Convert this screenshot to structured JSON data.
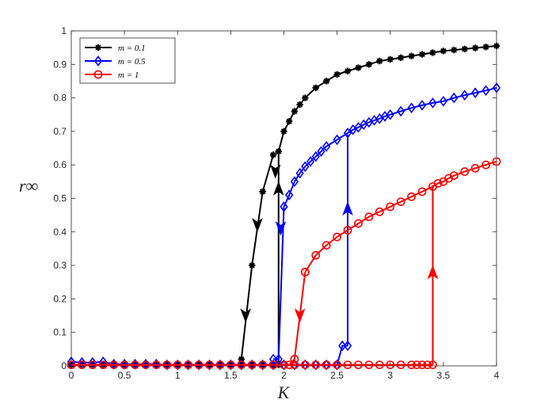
{
  "chart_data": {
    "type": "line",
    "xlabel": "K",
    "ylabel": "r∞",
    "xlim": [
      0,
      4
    ],
    "ylim": [
      0,
      1
    ],
    "xticks": [
      "0",
      "0.5",
      "1",
      "1.5",
      "2",
      "2.5",
      "3",
      "3.5",
      "4"
    ],
    "yticks": [
      "0",
      "0.1",
      "0.2",
      "0.3",
      "0.4",
      "0.5",
      "0.6",
      "0.7",
      "0.8",
      "0.9",
      "1"
    ],
    "legend_position": "top-left",
    "grid": false,
    "series": [
      {
        "name": "m = 0.1",
        "color": "#000000",
        "marker": "star",
        "forward": {
          "x": [
            0,
            0.1,
            0.2,
            0.3,
            0.4,
            0.5,
            0.6,
            0.7,
            0.8,
            0.9,
            1.0,
            1.1,
            1.2,
            1.3,
            1.4,
            1.5,
            1.6,
            1.7,
            1.8,
            1.9,
            1.95
          ],
          "y": [
            0.003,
            0.003,
            0.003,
            0.003,
            0.003,
            0.003,
            0.003,
            0.003,
            0.003,
            0.003,
            0.003,
            0.003,
            0.003,
            0.003,
            0.003,
            0.003,
            0.003,
            0.003,
            0.003,
            0.003,
            0.003
          ]
        },
        "jump_up": {
          "x": [
            1.95,
            1.95
          ],
          "y": [
            0.003,
            0.64
          ]
        },
        "upper": {
          "x": [
            1.95,
            2.0,
            2.05,
            2.1,
            2.15,
            2.2,
            2.3,
            2.4,
            2.5,
            2.6,
            2.7,
            2.8,
            2.9,
            3.0,
            3.1,
            3.2,
            3.3,
            3.4,
            3.5,
            3.6,
            3.7,
            3.8,
            3.9,
            4.0
          ],
          "y": [
            0.64,
            0.7,
            0.73,
            0.76,
            0.78,
            0.8,
            0.83,
            0.85,
            0.87,
            0.88,
            0.89,
            0.9,
            0.91,
            0.915,
            0.92,
            0.925,
            0.93,
            0.935,
            0.94,
            0.943,
            0.946,
            0.949,
            0.952,
            0.955
          ]
        },
        "backward": {
          "x": [
            1.9,
            1.8,
            1.7,
            1.6
          ],
          "y": [
            0.63,
            0.52,
            0.3,
            0.02
          ]
        },
        "arrows": [
          {
            "x": 1.92,
            "y": 0.58,
            "dir": "down"
          },
          {
            "x": 1.95,
            "y": 0.53,
            "dir": "up"
          },
          {
            "x": 1.75,
            "y": 0.42,
            "dir": "down"
          },
          {
            "x": 1.64,
            "y": 0.15,
            "dir": "down"
          }
        ]
      },
      {
        "name": "m = 0.5",
        "color": "#0000ff",
        "marker": "diamond",
        "forward": {
          "x": [
            0,
            0.1,
            0.2,
            0.3,
            0.4,
            0.5,
            0.6,
            0.7,
            0.8,
            0.9,
            1.0,
            1.1,
            1.2,
            1.3,
            1.4,
            1.5,
            1.6,
            1.7,
            1.8,
            1.9,
            2.0,
            2.1,
            2.2,
            2.3,
            2.4,
            2.5,
            2.55,
            2.6
          ],
          "y": [
            0.012,
            0.01,
            0.01,
            0.012,
            0.005,
            0.005,
            0.005,
            0.005,
            0.005,
            0.003,
            0.003,
            0.003,
            0.003,
            0.003,
            0.003,
            0.003,
            0.003,
            0.003,
            0.003,
            0.003,
            0.003,
            0.003,
            0.003,
            0.003,
            0.003,
            0.003,
            0.06,
            0.06
          ]
        },
        "jump_up": {
          "x": [
            2.6,
            2.6
          ],
          "y": [
            0.06,
            0.69
          ]
        },
        "upper": {
          "x": [
            2.0,
            2.05,
            2.1,
            2.15,
            2.2,
            2.25,
            2.3,
            2.35,
            2.4,
            2.5,
            2.6,
            2.65,
            2.7,
            2.75,
            2.8,
            2.85,
            2.9,
            2.95,
            3.0,
            3.1,
            3.2,
            3.3,
            3.4,
            3.5,
            3.6,
            3.7,
            3.8,
            3.9,
            4.0
          ],
          "y": [
            0.475,
            0.51,
            0.55,
            0.575,
            0.595,
            0.61,
            0.625,
            0.64,
            0.655,
            0.675,
            0.695,
            0.705,
            0.712,
            0.72,
            0.727,
            0.733,
            0.738,
            0.745,
            0.75,
            0.76,
            0.77,
            0.778,
            0.785,
            0.79,
            0.8,
            0.808,
            0.815,
            0.822,
            0.83
          ]
        },
        "backward": {
          "x": [
            2.0,
            1.95,
            1.9
          ],
          "y": [
            0.475,
            0.02,
            0.02
          ]
        },
        "arrows": [
          {
            "x": 2.6,
            "y": 0.47,
            "dir": "up"
          },
          {
            "x": 1.97,
            "y": 0.41,
            "dir": "down"
          }
        ]
      },
      {
        "name": "m = 1",
        "color": "#ff0000",
        "marker": "circle",
        "forward": {
          "x": [
            0,
            0.1,
            0.2,
            0.3,
            0.4,
            0.5,
            0.6,
            0.7,
            0.8,
            0.9,
            1.0,
            1.1,
            1.2,
            1.3,
            1.4,
            1.5,
            1.6,
            1.7,
            1.8,
            1.9,
            2.0,
            2.1,
            2.2,
            2.3,
            2.4,
            2.5,
            2.6,
            2.7,
            2.8,
            2.9,
            3.0,
            3.1,
            3.2,
            3.25,
            3.3,
            3.35,
            3.4
          ],
          "y": [
            0.003,
            0.003,
            0.003,
            0.003,
            0.003,
            0.003,
            0.003,
            0.003,
            0.003,
            0.003,
            0.003,
            0.003,
            0.003,
            0.003,
            0.003,
            0.003,
            0.003,
            0.003,
            0.003,
            0.003,
            0.003,
            0.003,
            0.003,
            0.003,
            0.003,
            0.003,
            0.003,
            0.003,
            0.003,
            0.003,
            0.003,
            0.003,
            0.003,
            0.003,
            0.003,
            0.003,
            0.003
          ]
        },
        "jump_up": {
          "x": [
            3.4,
            3.4
          ],
          "y": [
            0.003,
            0.54
          ]
        },
        "upper": {
          "x": [
            2.2,
            2.3,
            2.4,
            2.5,
            2.6,
            2.7,
            2.8,
            2.9,
            3.0,
            3.1,
            3.2,
            3.3,
            3.4,
            3.45,
            3.5,
            3.55,
            3.6,
            3.7,
            3.8,
            3.9,
            4.0
          ],
          "y": [
            0.28,
            0.33,
            0.36,
            0.385,
            0.405,
            0.425,
            0.445,
            0.46,
            0.475,
            0.49,
            0.505,
            0.52,
            0.535,
            0.545,
            0.55,
            0.56,
            0.568,
            0.58,
            0.59,
            0.6,
            0.61
          ]
        },
        "backward": {
          "x": [
            2.2,
            2.1,
            2.05
          ],
          "y": [
            0.28,
            0.02,
            0.003
          ]
        },
        "arrows": [
          {
            "x": 3.4,
            "y": 0.28,
            "dir": "up"
          },
          {
            "x": 2.15,
            "y": 0.15,
            "dir": "down"
          }
        ]
      }
    ]
  }
}
